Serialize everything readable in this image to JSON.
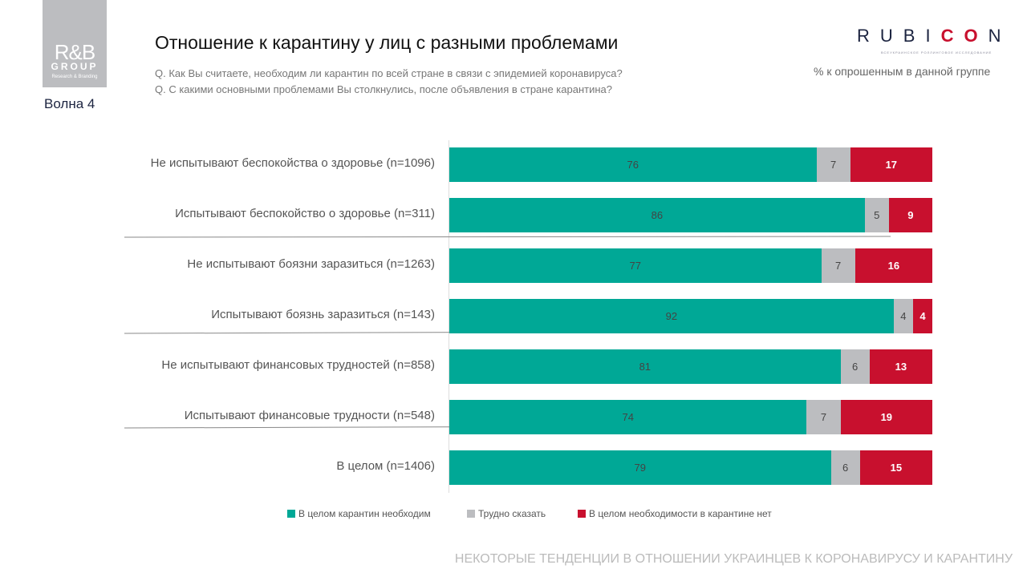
{
  "logo": {
    "line1": "R&B",
    "line2": "GROUP",
    "line3": "Research & Branding"
  },
  "wave": "Волна 4",
  "title": "Отношение к карантину у лиц с разными проблемами",
  "questions": [
    "Q. Как Вы считаете, необходим ли карантин по всей стране в связи с эпидемией коронавируса?",
    "Q. С какими основными проблемами Вы столкнулись, после объявления в стране карантина?"
  ],
  "brand": {
    "name_a": "RUBI",
    "name_b": "CO",
    "name_c": "N",
    "subtitle": "ВСЕУКРАИНСКОЕ РОЛЛИНГОВОЕ ИССЛЕДОВАНИЕ"
  },
  "unit_note": "% к опрошенным в данной группе",
  "footer": "НЕКОТОРЫЕ ТЕНДЕНЦИИ В ОТНОШЕНИИ УКРАИНЦЕВ К КОРОНАВИРУСУ И КАРАНТИНУ",
  "chart_data": {
    "type": "bar",
    "orientation": "horizontal",
    "stacked": true,
    "xlim": [
      0,
      100
    ],
    "categories": [
      "Не испытывают беспокойства о здоровье (n=1096)",
      "Испытывают беспокойство о здоровье (n=311)",
      "Не испытывают боязни заразиться (n=1263)",
      "Испытывают боязнь заразиться (n=143)",
      "Не испытывают финансовых трудностей (n=858)",
      "Испытывают финансовые трудности (n=548)",
      "В целом (n=1406)"
    ],
    "series": [
      {
        "name": "В целом карантин необходим",
        "color": "#00a896",
        "values": [
          76,
          86,
          77,
          92,
          81,
          74,
          79
        ]
      },
      {
        "name": "Трудно сказать",
        "color": "#bcbdc0",
        "values": [
          7,
          5,
          7,
          4,
          6,
          7,
          6
        ]
      },
      {
        "name": "В целом необходимости в карантине нет",
        "color": "#c8102e",
        "values": [
          17,
          9,
          16,
          4,
          13,
          19,
          15
        ]
      }
    ],
    "legend": "bottom"
  }
}
